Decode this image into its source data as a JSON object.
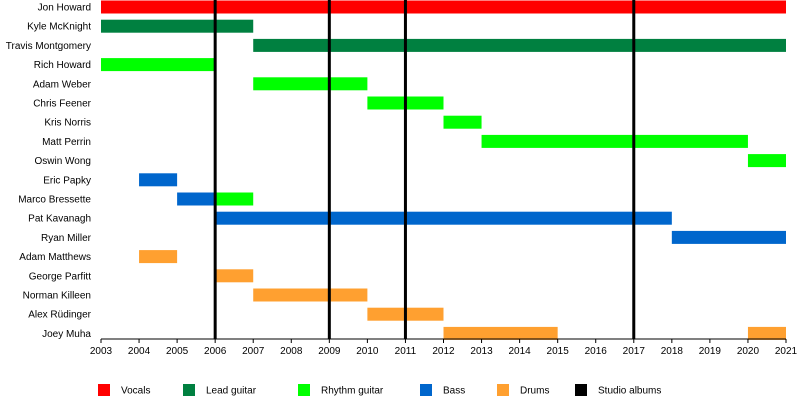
{
  "chart_data": {
    "type": "timeline",
    "title": "",
    "xlim": [
      2003,
      2021
    ],
    "x_ticks": [
      "2003",
      "2004",
      "2005",
      "2006",
      "2007",
      "2008",
      "2009",
      "2010",
      "2011",
      "2012",
      "2013",
      "2014",
      "2015",
      "2016",
      "2017",
      "2018",
      "2019",
      "2020",
      "2021"
    ],
    "colors": {
      "Vocals": "#ff0000",
      "Lead guitar": "#008040",
      "Rhythm guitar": "#00ff00",
      "Bass": "#0066cc",
      "Drums": "#ffa030",
      "Studio albums": "#000000"
    },
    "members": [
      {
        "name": "Jon Howard",
        "periods": [
          {
            "role": "Vocals",
            "start": 2003,
            "end": 2021
          }
        ]
      },
      {
        "name": "Kyle McKnight",
        "periods": [
          {
            "role": "Lead guitar",
            "start": 2003,
            "end": 2007
          }
        ]
      },
      {
        "name": "Travis Montgomery",
        "periods": [
          {
            "role": "Lead guitar",
            "start": 2007,
            "end": 2021
          }
        ]
      },
      {
        "name": "Rich Howard",
        "periods": [
          {
            "role": "Rhythm guitar",
            "start": 2003,
            "end": 2006
          }
        ]
      },
      {
        "name": "Adam Weber",
        "periods": [
          {
            "role": "Rhythm guitar",
            "start": 2007,
            "end": 2010
          }
        ]
      },
      {
        "name": "Chris Feener",
        "periods": [
          {
            "role": "Rhythm guitar",
            "start": 2010,
            "end": 2012
          }
        ]
      },
      {
        "name": "Kris Norris",
        "periods": [
          {
            "role": "Rhythm guitar",
            "start": 2012,
            "end": 2013
          }
        ]
      },
      {
        "name": "Matt Perrin",
        "periods": [
          {
            "role": "Rhythm guitar",
            "start": 2013,
            "end": 2020
          }
        ]
      },
      {
        "name": "Oswin Wong",
        "periods": [
          {
            "role": "Rhythm guitar",
            "start": 2020,
            "end": 2021
          }
        ]
      },
      {
        "name": "Eric Papky",
        "periods": [
          {
            "role": "Bass",
            "start": 2004,
            "end": 2005
          }
        ]
      },
      {
        "name": "Marco Bressette",
        "periods": [
          {
            "role": "Bass",
            "start": 2005,
            "end": 2006
          },
          {
            "role": "Rhythm guitar",
            "start": 2006,
            "end": 2007
          }
        ]
      },
      {
        "name": "Pat Kavanagh",
        "periods": [
          {
            "role": "Bass",
            "start": 2006,
            "end": 2018
          }
        ]
      },
      {
        "name": "Ryan Miller",
        "periods": [
          {
            "role": "Bass",
            "start": 2018,
            "end": 2021
          }
        ]
      },
      {
        "name": "Adam Matthews",
        "periods": [
          {
            "role": "Drums",
            "start": 2004,
            "end": 2005
          }
        ]
      },
      {
        "name": "George Parfitt",
        "periods": [
          {
            "role": "Drums",
            "start": 2006,
            "end": 2007
          }
        ]
      },
      {
        "name": "Norman Killeen",
        "periods": [
          {
            "role": "Drums",
            "start": 2007,
            "end": 2010
          }
        ]
      },
      {
        "name": "Alex Rüdinger",
        "periods": [
          {
            "role": "Drums",
            "start": 2010,
            "end": 2012
          }
        ]
      },
      {
        "name": "Joey Muha",
        "periods": [
          {
            "role": "Drums",
            "start": 2012,
            "end": 2015
          },
          {
            "role": "Drums",
            "start": 2020,
            "end": 2021
          }
        ]
      }
    ],
    "studio_albums": [
      2006,
      2009,
      2011,
      2017
    ],
    "legend": [
      "Vocals",
      "Lead guitar",
      "Rhythm guitar",
      "Bass",
      "Drums",
      "Studio albums"
    ],
    "legend_placement": "bottom"
  }
}
